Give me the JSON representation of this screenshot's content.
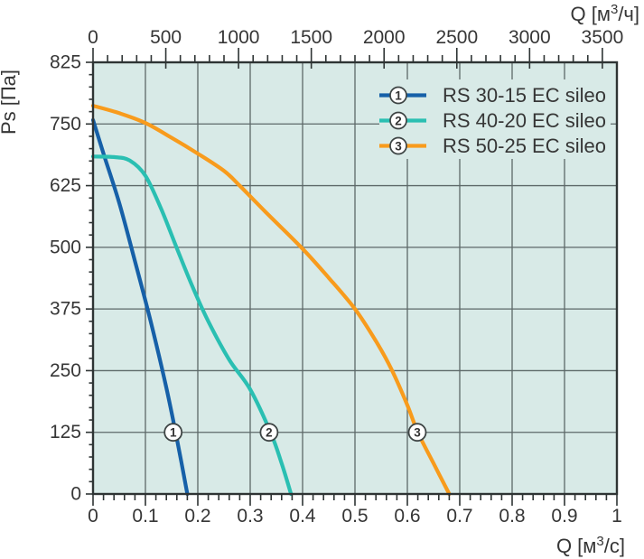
{
  "chart_data": {
    "type": "line",
    "title": "",
    "background_color": "#d8eae7",
    "grid_color": "#5c6868",
    "frame_color": "#2e3434",
    "text_color": "#363636",
    "grid": true,
    "legend_position": "top-right",
    "x_axis_bottom": {
      "label_prefix": "Q [м",
      "label_sup": "3",
      "label_suffix": "/с]",
      "min": 0,
      "max": 1,
      "major_step": 0.1,
      "minor_step": 0.02,
      "tick_labels": [
        "0",
        "0.1",
        "0.2",
        "0.3",
        "0.4",
        "0.5",
        "0.6",
        "0.7",
        "0.8",
        "0.9",
        "1"
      ]
    },
    "x_axis_top": {
      "label_prefix": "Q [м",
      "label_sup": "3",
      "label_suffix": "/ч]",
      "min": 0,
      "max": 3600,
      "major_step": 500,
      "minor_step": 100,
      "tick_labels": [
        "0",
        "500",
        "1000",
        "1500",
        "2000",
        "2500",
        "3000",
        "3500"
      ]
    },
    "y_axis": {
      "label": "Ps [Па]",
      "min": 0,
      "max": 875,
      "major_step": 125,
      "minor_step": 25,
      "tick_labels": [
        "0",
        "125",
        "250",
        "375",
        "500",
        "625",
        "750"
      ],
      "top_edge_label": "825"
    },
    "series": [
      {
        "id": "1",
        "name": "RS 30-15 EC sileo",
        "color": "#1660a8",
        "points": [
          [
            0,
            758
          ],
          [
            0.02,
            690
          ],
          [
            0.05,
            590
          ],
          [
            0.08,
            472
          ],
          [
            0.11,
            350
          ],
          [
            0.14,
            215
          ],
          [
            0.16,
            112
          ],
          [
            0.18,
            0
          ]
        ],
        "marker_at": [
          0.153,
          125
        ]
      },
      {
        "id": "2",
        "name": "RS 40-20 EC sileo",
        "color": "#2abfb2",
        "points": [
          [
            0,
            684
          ],
          [
            0.04,
            683
          ],
          [
            0.07,
            676
          ],
          [
            0.1,
            645
          ],
          [
            0.13,
            578
          ],
          [
            0.16,
            498
          ],
          [
            0.19,
            420
          ],
          [
            0.22,
            350
          ],
          [
            0.26,
            272
          ],
          [
            0.3,
            212
          ],
          [
            0.34,
            122
          ],
          [
            0.36,
            62
          ],
          [
            0.378,
            0
          ]
        ],
        "marker_at": [
          0.336,
          125
        ]
      },
      {
        "id": "3",
        "name": "RS 50-25 EC sileo",
        "color": "#f89b1c",
        "points": [
          [
            0,
            787
          ],
          [
            0.05,
            772
          ],
          [
            0.1,
            752
          ],
          [
            0.15,
            722
          ],
          [
            0.2,
            690
          ],
          [
            0.25,
            655
          ],
          [
            0.28,
            625
          ],
          [
            0.33,
            571
          ],
          [
            0.4,
            497
          ],
          [
            0.45,
            438
          ],
          [
            0.5,
            375
          ],
          [
            0.54,
            310
          ],
          [
            0.57,
            252
          ],
          [
            0.6,
            180
          ],
          [
            0.62,
            125
          ],
          [
            0.65,
            62
          ],
          [
            0.68,
            0
          ]
        ],
        "marker_at": [
          0.619,
          125
        ]
      }
    ],
    "marker_style": {
      "fill": "#ffffff",
      "stroke": "#3d4444"
    }
  }
}
